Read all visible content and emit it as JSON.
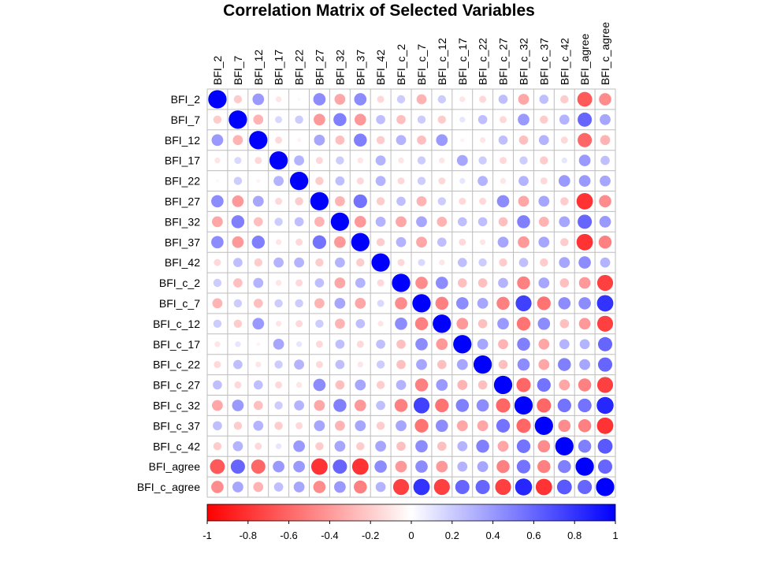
{
  "chart_data": {
    "type": "heatmap",
    "title": "Correlation Matrix of Selected Variables",
    "variables": [
      "BFI_2",
      "BFI_7",
      "BFI_12",
      "BFI_17",
      "BFI_22",
      "BFI_27",
      "BFI_32",
      "BFI_37",
      "BFI_42",
      "BFI_c_2",
      "BFI_c_7",
      "BFI_c_12",
      "BFI_c_17",
      "BFI_c_22",
      "BFI_c_27",
      "BFI_c_32",
      "BFI_c_37",
      "BFI_c_42",
      "BFI_agree",
      "BFI_c_agree"
    ],
    "matrix": [
      [
        1,
        -0.2,
        0.4,
        -0.1,
        -0.03,
        0.45,
        -0.35,
        0.45,
        -0.15,
        0.2,
        -0.3,
        0.2,
        -0.1,
        -0.15,
        0.25,
        -0.35,
        0.25,
        -0.2,
        -0.65,
        -0.45
      ],
      [
        -0.2,
        1,
        -0.3,
        0.15,
        0.2,
        -0.4,
        0.5,
        -0.4,
        0.25,
        -0.25,
        0.2,
        -0.2,
        0.1,
        0.25,
        -0.15,
        0.4,
        -0.2,
        0.3,
        0.6,
        0.35
      ],
      [
        0.4,
        -0.3,
        1,
        -0.15,
        -0.05,
        0.35,
        -0.25,
        0.5,
        -0.2,
        0.3,
        -0.25,
        0.4,
        -0.05,
        -0.1,
        0.25,
        -0.25,
        0.3,
        -0.15,
        -0.6,
        -0.3
      ],
      [
        -0.1,
        0.15,
        -0.15,
        1,
        0.3,
        -0.15,
        0.2,
        -0.1,
        0.3,
        -0.1,
        0.2,
        -0.1,
        0.35,
        0.2,
        -0.15,
        0.2,
        -0.2,
        0.1,
        0.4,
        0.25
      ],
      [
        -0.03,
        0.2,
        -0.05,
        0.3,
        1,
        -0.2,
        0.25,
        -0.15,
        0.3,
        -0.15,
        0.2,
        -0.15,
        0.1,
        0.3,
        -0.1,
        0.3,
        -0.15,
        0.4,
        0.4,
        0.35
      ],
      [
        0.45,
        -0.4,
        0.35,
        -0.15,
        -0.2,
        1,
        -0.3,
        0.55,
        -0.2,
        0.25,
        -0.3,
        0.2,
        -0.15,
        -0.15,
        0.45,
        -0.35,
        0.35,
        -0.2,
        -0.8,
        -0.45
      ],
      [
        -0.35,
        0.5,
        -0.25,
        0.2,
        0.25,
        -0.3,
        1,
        -0.4,
        0.3,
        -0.35,
        0.35,
        -0.3,
        0.25,
        0.25,
        -0.25,
        0.5,
        -0.3,
        0.35,
        0.6,
        0.4
      ],
      [
        0.45,
        -0.4,
        0.5,
        -0.1,
        -0.15,
        0.55,
        -0.4,
        1,
        -0.2,
        0.3,
        -0.35,
        0.25,
        -0.15,
        -0.1,
        0.35,
        -0.4,
        0.35,
        -0.2,
        -0.8,
        -0.5
      ],
      [
        -0.15,
        0.25,
        -0.2,
        0.3,
        0.3,
        -0.2,
        0.3,
        -0.2,
        1,
        -0.15,
        0.15,
        -0.1,
        0.25,
        0.2,
        -0.2,
        0.25,
        -0.2,
        0.35,
        0.45,
        0.3
      ],
      [
        0.2,
        -0.25,
        0.3,
        -0.1,
        -0.15,
        0.25,
        -0.35,
        0.3,
        -0.15,
        1,
        -0.45,
        0.45,
        -0.25,
        -0.25,
        0.3,
        -0.5,
        0.35,
        -0.25,
        -0.4,
        -0.75
      ],
      [
        -0.3,
        0.2,
        -0.25,
        0.2,
        0.2,
        -0.3,
        0.35,
        -0.35,
        0.15,
        -0.45,
        1,
        -0.5,
        0.45,
        0.35,
        -0.5,
        0.75,
        -0.55,
        0.45,
        0.45,
        0.8
      ],
      [
        0.2,
        -0.2,
        0.4,
        -0.1,
        -0.15,
        0.2,
        -0.3,
        0.25,
        -0.1,
        0.45,
        -0.5,
        1,
        -0.4,
        -0.25,
        0.4,
        -0.55,
        0.45,
        -0.25,
        -0.4,
        -0.75
      ],
      [
        -0.1,
        0.1,
        -0.05,
        0.35,
        0.1,
        -0.15,
        0.25,
        -0.15,
        0.25,
        -0.25,
        0.45,
        -0.4,
        1,
        0.35,
        -0.3,
        0.5,
        -0.35,
        0.3,
        0.3,
        0.6
      ],
      [
        -0.15,
        0.25,
        -0.1,
        0.2,
        0.3,
        -0.15,
        0.25,
        -0.1,
        0.2,
        -0.25,
        0.35,
        -0.25,
        0.35,
        1,
        -0.25,
        0.45,
        -0.35,
        0.5,
        0.35,
        0.6
      ],
      [
        0.25,
        -0.15,
        0.25,
        -0.15,
        -0.1,
        0.45,
        -0.25,
        0.35,
        -0.2,
        0.3,
        -0.5,
        0.4,
        -0.3,
        -0.25,
        1,
        -0.6,
        0.55,
        -0.35,
        -0.5,
        -0.75
      ],
      [
        -0.35,
        0.4,
        -0.25,
        0.2,
        0.3,
        -0.35,
        0.5,
        -0.4,
        0.25,
        -0.5,
        0.75,
        -0.55,
        0.5,
        0.45,
        -0.6,
        1,
        -0.6,
        0.55,
        0.55,
        0.85
      ],
      [
        0.25,
        -0.2,
        0.3,
        -0.2,
        -0.15,
        0.35,
        -0.3,
        0.35,
        -0.2,
        0.35,
        -0.55,
        0.45,
        -0.35,
        -0.35,
        0.55,
        -0.6,
        1,
        -0.45,
        -0.5,
        -0.8
      ],
      [
        -0.2,
        0.3,
        -0.15,
        0.1,
        0.4,
        -0.2,
        0.35,
        -0.2,
        0.35,
        -0.25,
        0.45,
        -0.25,
        0.3,
        0.5,
        -0.35,
        0.55,
        -0.45,
        1,
        0.5,
        0.65
      ],
      [
        -0.65,
        0.6,
        -0.6,
        0.4,
        0.4,
        -0.8,
        0.6,
        -0.8,
        0.45,
        -0.4,
        0.45,
        -0.4,
        0.3,
        0.35,
        -0.5,
        0.55,
        -0.5,
        0.5,
        1,
        0.6
      ],
      [
        -0.45,
        0.35,
        -0.3,
        0.25,
        0.35,
        -0.45,
        0.4,
        -0.5,
        0.3,
        -0.75,
        0.8,
        -0.75,
        0.6,
        0.6,
        -0.75,
        0.85,
        -0.8,
        0.65,
        0.6,
        1
      ]
    ],
    "colorbar_ticks": [
      "-1",
      "-0.8",
      "-0.6",
      "-0.4",
      "-0.2",
      "0",
      "0.2",
      "0.4",
      "0.6",
      "0.8",
      "1"
    ],
    "colorscale": {
      "low": "#FF0000",
      "mid": "#FFFFFF",
      "high": "#0000FF"
    },
    "range": [
      -1,
      1
    ],
    "grid": true,
    "legend": "bottom colorbar"
  }
}
